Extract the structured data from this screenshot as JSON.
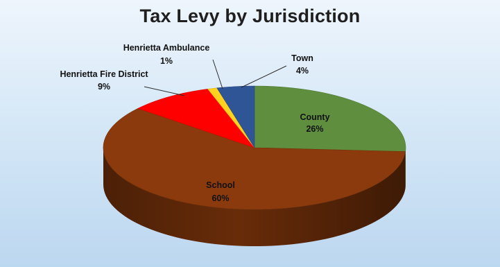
{
  "chart_data": {
    "type": "pie",
    "title": "Tax Levy by Jurisdiction",
    "slices": [
      {
        "name": "County",
        "value": 26,
        "label": "26%",
        "color": "#5f8f3e"
      },
      {
        "name": "School",
        "value": 60,
        "label": "60%",
        "color": "#8a3a0c"
      },
      {
        "name": "Henrietta Fire District",
        "value": 9,
        "label": "9%",
        "color": "#ff0000"
      },
      {
        "name": "Henrietta Ambulance",
        "value": 1,
        "label": "1%",
        "color": "#ffd21f"
      },
      {
        "name": "Town",
        "value": 4,
        "label": "4%",
        "color": "#2f5597"
      }
    ],
    "style": "3d-pie"
  }
}
